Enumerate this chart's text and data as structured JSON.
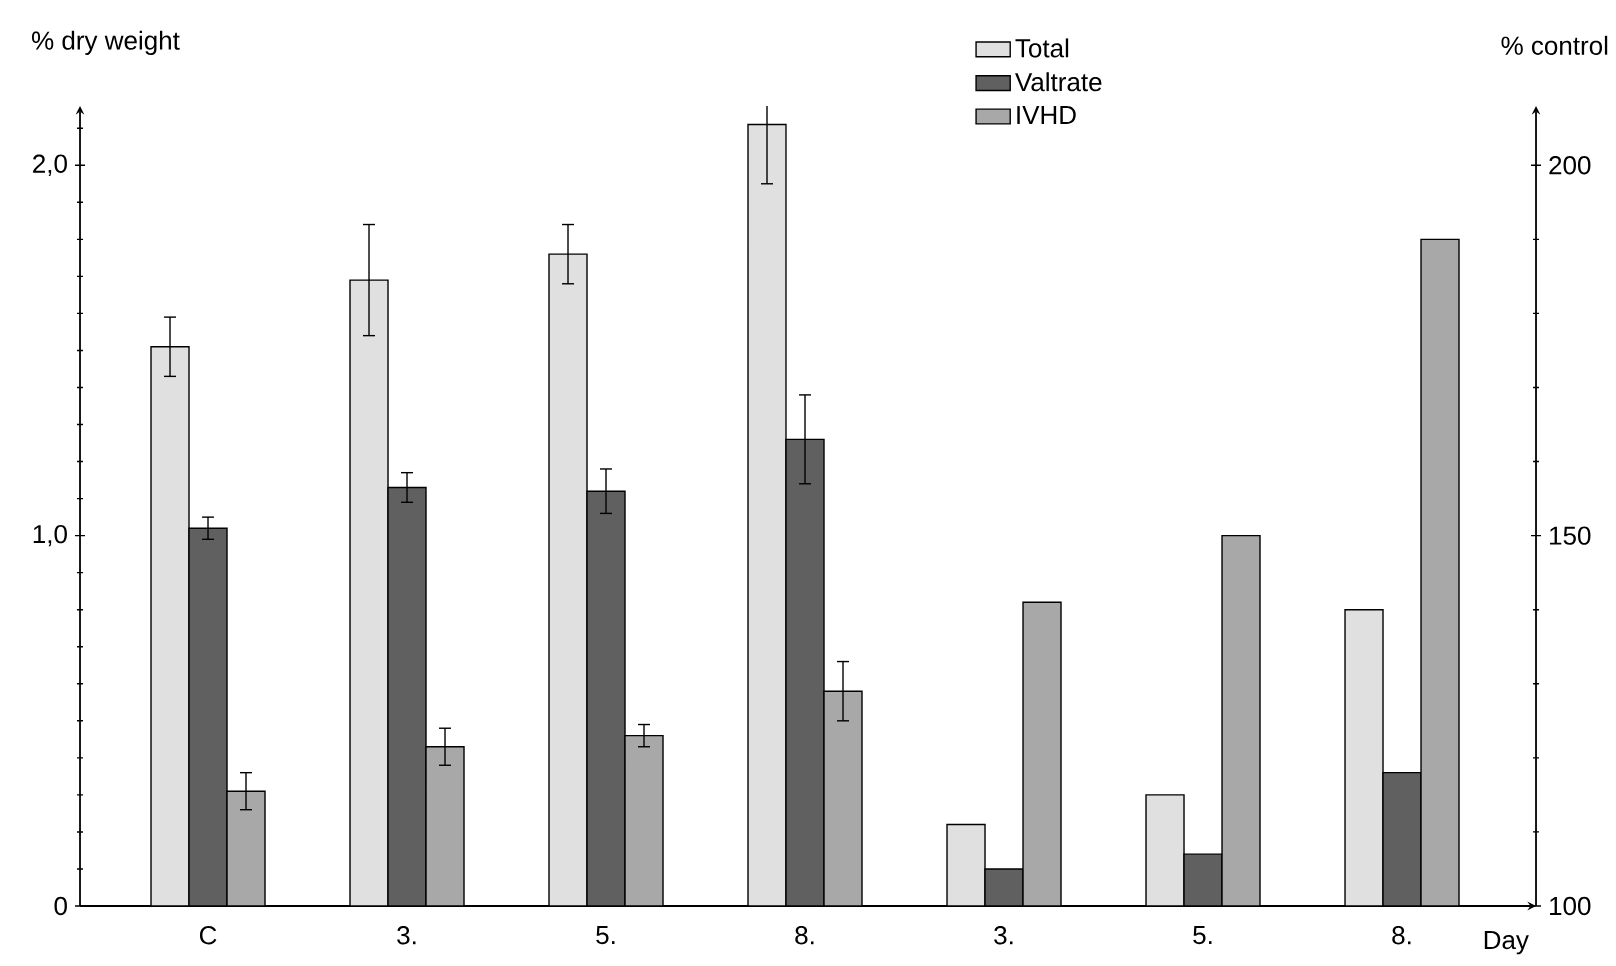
{
  "chart_data": {
    "type": "bar",
    "categories": [
      "C",
      "3.",
      "5.",
      "8.",
      "3.",
      "5.",
      "8."
    ],
    "xlabel": "Day",
    "ylabel": "% dry weight",
    "y2label": "% control",
    "legend": "top",
    "series": [
      {
        "name": "Total",
        "color": "#e0e0e0",
        "values": [
          1.51,
          1.69,
          1.76,
          2.11,
          null,
          null,
          null
        ],
        "errors": [
          0.08,
          0.15,
          0.08,
          0.16,
          null,
          null,
          null
        ]
      },
      {
        "name": "Valtrate",
        "color": "#606060",
        "values": [
          1.02,
          1.13,
          1.12,
          1.26,
          null,
          null,
          null
        ],
        "errors": [
          0.03,
          0.04,
          0.06,
          0.12,
          null,
          null,
          null
        ]
      },
      {
        "name": "IVHD",
        "color": "#a8a8a8",
        "values": [
          0.31,
          0.43,
          0.46,
          0.58,
          null,
          null,
          null
        ],
        "errors": [
          0.05,
          0.05,
          0.03,
          0.08,
          null,
          null,
          null
        ]
      },
      {
        "color": "#e0e0e0",
        "axis": "y2",
        "values": [
          null,
          null,
          null,
          null,
          111,
          115,
          140
        ]
      },
      {
        "color": "#606060",
        "axis": "y2",
        "values": [
          null,
          null,
          null,
          null,
          105,
          107,
          118
        ]
      },
      {
        "color": "#a8a8a8",
        "axis": "y2",
        "values": [
          null,
          null,
          null,
          null,
          141,
          150,
          190
        ]
      }
    ],
    "ylim": [
      0,
      2.16
    ],
    "yticks": [
      0,
      {
        "value": 0.1,
        "label": null
      },
      {
        "value": 0.2,
        "label": null
      },
      {
        "value": 0.3,
        "label": null
      },
      {
        "value": 0.4,
        "label": null
      },
      {
        "value": 0.5,
        "label": null
      },
      {
        "value": 0.6,
        "label": null
      },
      {
        "value": 0.7,
        "label": null
      },
      {
        "value": 0.8,
        "label": null
      },
      {
        "value": 0.9,
        "label": null
      },
      {
        "value": 1.0,
        "label": "1,0"
      },
      {
        "value": 1.1,
        "label": null
      },
      {
        "value": 1.2,
        "label": null
      },
      {
        "value": 1.3,
        "label": null
      },
      {
        "value": 1.4,
        "label": null
      },
      {
        "value": 1.5,
        "label": null
      },
      {
        "value": 1.6,
        "label": null
      },
      {
        "value": 1.7,
        "label": null
      },
      {
        "value": 1.8,
        "label": null
      },
      {
        "value": 1.9,
        "label": null
      },
      {
        "value": 2.0,
        "label": "2,0"
      },
      {
        "value": 2.1,
        "label": null
      }
    ],
    "y2lim": [
      100,
      208
    ],
    "y2ticks": [
      100,
      {
        "value": 110,
        "label": null
      },
      {
        "value": 120,
        "label": null
      },
      {
        "value": 130,
        "label": null
      },
      {
        "value": 140,
        "label": null
      },
      150,
      {
        "value": 160,
        "label": null
      },
      {
        "value": 170,
        "label": null
      },
      {
        "value": 180,
        "label": null
      },
      {
        "value": 190,
        "label": null
      },
      200
    ]
  }
}
